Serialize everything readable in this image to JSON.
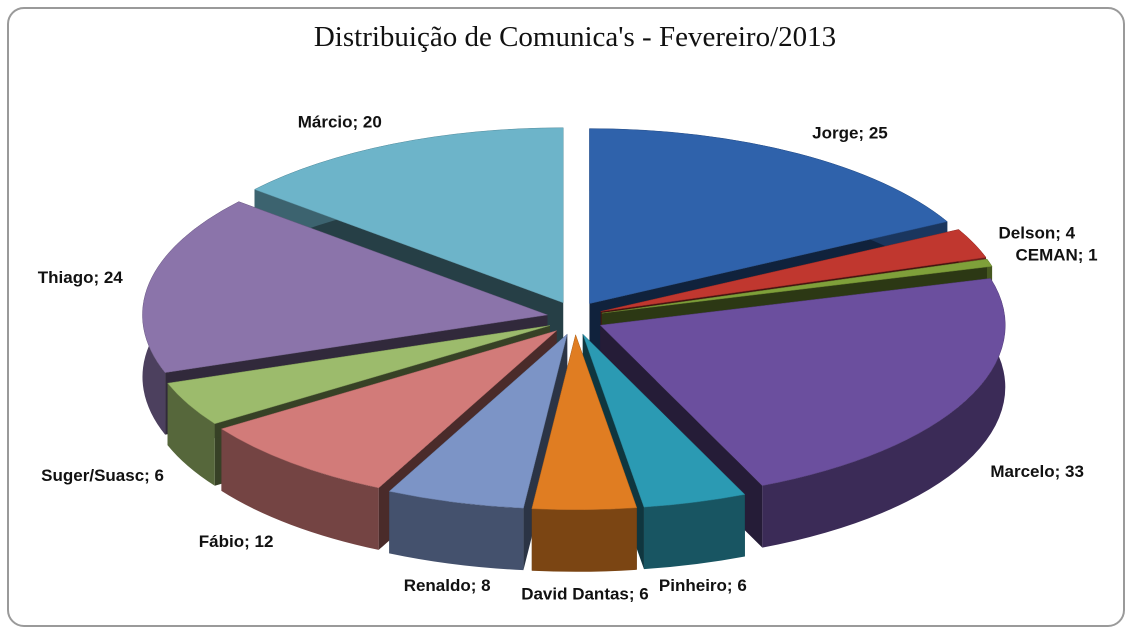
{
  "chart_data": {
    "type": "pie",
    "title": "Distribuição de Comunica's - Fevereiro/2013",
    "values": [
      25,
      4,
      1,
      33,
      6,
      6,
      8,
      12,
      6,
      24,
      20
    ],
    "value_labels": [
      "Jorge; 25",
      "Delson; 4",
      "CEMAN; 1",
      "Marcelo; 33",
      "Pinheiro; 6",
      "David Dantas; 6",
      "Renaldo; 8",
      "Fábio; 12",
      "Suger/Suasc; 6",
      "Thiago; 24",
      "Márcio; 20"
    ],
    "colors": [
      "#2f62ab",
      "#c0372f",
      "#7fa03a",
      "#6b4f9e",
      "#2b9ab3",
      "#e07d22",
      "#7c94c6",
      "#d27b79",
      "#9cbb6c",
      "#8b74aa",
      "#6db4c9"
    ]
  }
}
